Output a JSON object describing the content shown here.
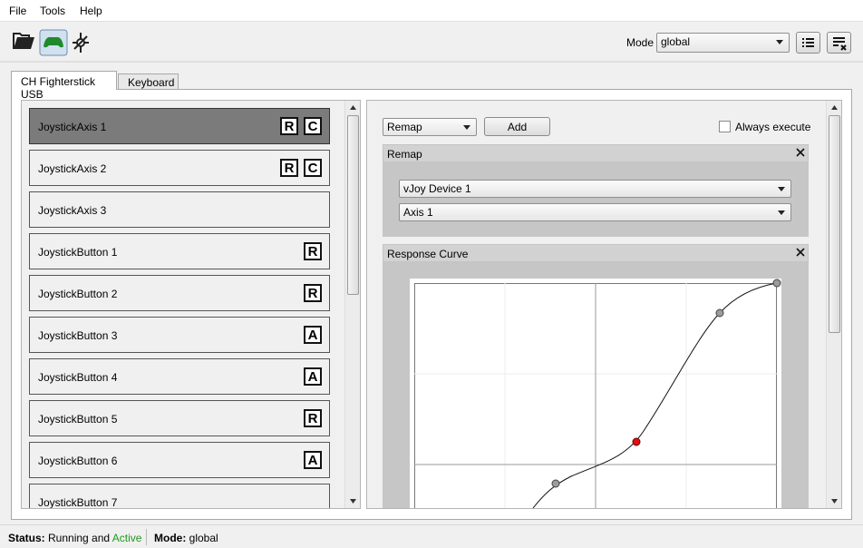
{
  "menu": [
    "File",
    "Tools",
    "Help"
  ],
  "toolbar": {
    "mode_label": "Mode",
    "mode_value": "global"
  },
  "tabs": [
    "CH Fighterstick USB",
    "Keyboard"
  ],
  "inputs": [
    {
      "label": "JoystickAxis 1",
      "badges": [
        "R",
        "C"
      ]
    },
    {
      "label": "JoystickAxis 2",
      "badges": [
        "R",
        "C"
      ]
    },
    {
      "label": "JoystickAxis 3",
      "badges": []
    },
    {
      "label": "JoystickButton 1",
      "badges": [
        "R"
      ]
    },
    {
      "label": "JoystickButton 2",
      "badges": [
        "R"
      ]
    },
    {
      "label": "JoystickButton 3",
      "badges": [
        "A"
      ]
    },
    {
      "label": "JoystickButton 4",
      "badges": [
        "A"
      ]
    },
    {
      "label": "JoystickButton 5",
      "badges": [
        "R"
      ]
    },
    {
      "label": "JoystickButton 6",
      "badges": [
        "A"
      ]
    },
    {
      "label": "JoystickButton 7",
      "badges": []
    }
  ],
  "actions": {
    "selector": "Remap",
    "add": "Add",
    "always_execute": "Always execute"
  },
  "remap": {
    "title": "Remap",
    "device": "vJoy Device 1",
    "axis": "Axis 1"
  },
  "response_curve": {
    "title": "Response Curve"
  },
  "status": {
    "status_label": "Status:",
    "status_text": "Running and",
    "status_state": "Active",
    "mode_label": "Mode:",
    "mode_value": "global"
  }
}
